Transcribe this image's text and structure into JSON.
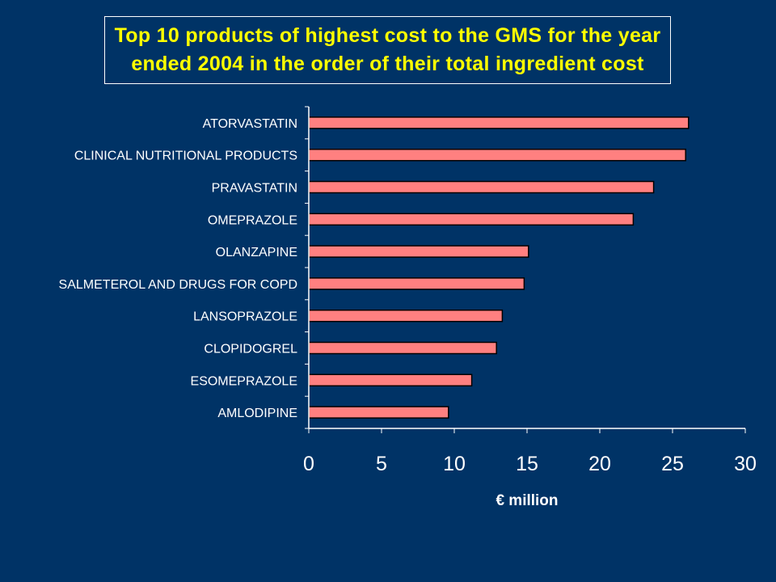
{
  "title_lines": [
    "Top 10 products of highest cost to the GMS for the year",
    "ended 2004 in the order of their total ingredient cost"
  ],
  "colors": {
    "background": "#003366",
    "title_text": "#ffff00",
    "bar_fill": "#ff8080",
    "bar_stroke": "#000000",
    "axis": "#ffffff",
    "text": "#ffffff"
  },
  "chart_data": {
    "type": "bar",
    "orientation": "horizontal",
    "title": "Top 10 products of highest cost to the GMS for the year ended 2004 in the order of their total ingredient cost",
    "xlabel": "€ million",
    "ylabel": "",
    "xlim": [
      0,
      30
    ],
    "xticks": [
      0,
      5,
      10,
      15,
      20,
      25,
      30
    ],
    "grid": false,
    "categories": [
      "ATORVASTATIN",
      "CLINICAL NUTRITIONAL PRODUCTS",
      "PRAVASTATIN",
      "OMEPRAZOLE",
      "OLANZAPINE",
      "SALMETEROL AND DRUGS FOR COPD",
      "LANSOPRAZOLE",
      "CLOPIDOGREL",
      "ESOMEPRAZOLE",
      "AMLODIPINE"
    ],
    "values": [
      26.1,
      25.9,
      23.7,
      22.3,
      15.1,
      14.8,
      13.3,
      12.9,
      11.2,
      9.6
    ]
  }
}
